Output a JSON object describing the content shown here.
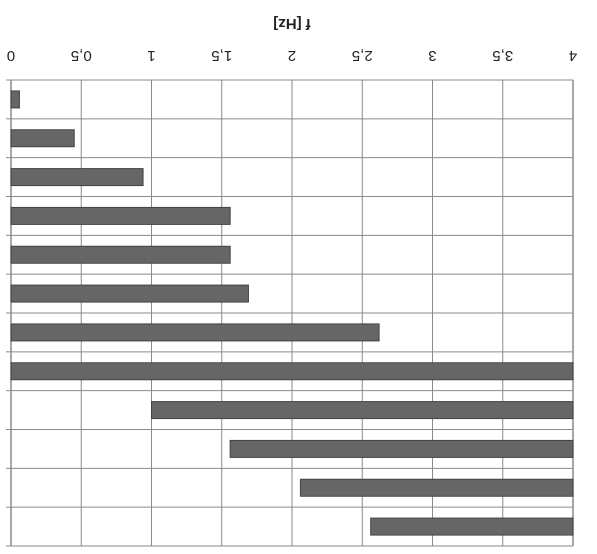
{
  "chart_data": {
    "type": "bar",
    "orientation": "horizontal-floating",
    "xlabel": "f [Hz]",
    "x_axis_position": "top",
    "xlim": [
      0,
      4
    ],
    "xticks": [
      0,
      0.5,
      1,
      1.5,
      2,
      2.5,
      3,
      3.5,
      4
    ],
    "xtick_labels": [
      "0",
      "0,5",
      "1",
      "1,5",
      "2",
      "2,5",
      "3",
      "3,5",
      "4"
    ],
    "grid": true,
    "rendering": "mirrored-text",
    "bars": [
      {
        "start": 0,
        "end": 0.06
      },
      {
        "start": 0,
        "end": 0.45
      },
      {
        "start": 0,
        "end": 0.94
      },
      {
        "start": 0,
        "end": 1.56
      },
      {
        "start": 0,
        "end": 1.56
      },
      {
        "start": 0,
        "end": 1.69
      },
      {
        "start": 0,
        "end": 2.62
      },
      {
        "start": 0,
        "end": 4.0
      },
      {
        "start": 1.0,
        "end": 4.0
      },
      {
        "start": 1.56,
        "end": 4.0
      },
      {
        "start": 2.06,
        "end": 4.0
      },
      {
        "start": 2.56,
        "end": 4.0
      }
    ],
    "colors": {
      "bar": "#666666",
      "bar_edge": "#444444",
      "grid": "#8a8a8a",
      "text": "#222222"
    }
  }
}
